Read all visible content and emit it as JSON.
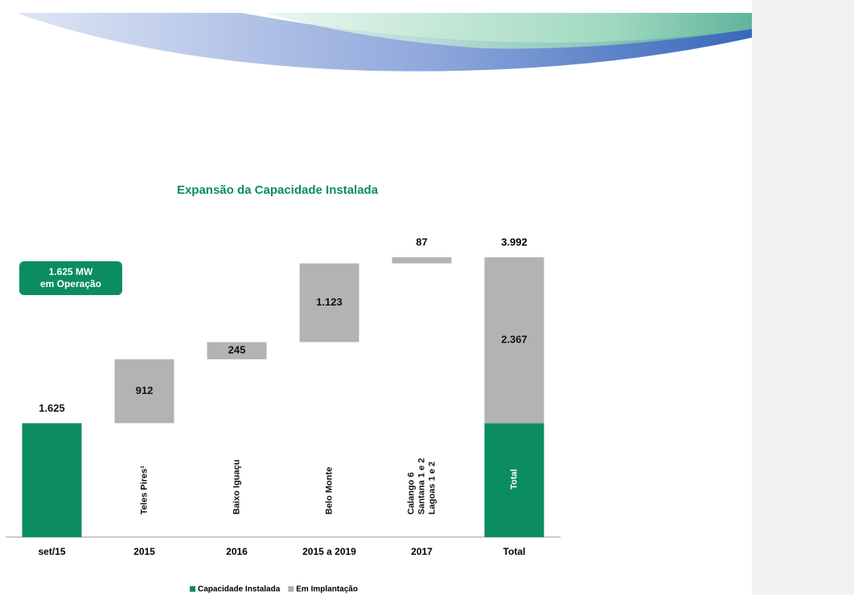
{
  "chart_data": {
    "type": "waterfall",
    "title": "Expansão da Capacidade Instalada",
    "badge": [
      "1.625 MW",
      "em Operação"
    ],
    "categories": [
      "set/15",
      "2015",
      "2016",
      "2015 a 2019",
      "2017",
      "Total"
    ],
    "bar_labels": [
      null,
      "Teles Pires¹",
      "Baixo Iguaçu",
      "Belo Monte",
      [
        "Calango 6",
        "Santana 1 e 2",
        "Lagoas 1 e 2"
      ],
      "Total"
    ],
    "series": [
      {
        "name": "Capacidade Instalada",
        "color": "#0b8c62",
        "values": [
          1625,
          null,
          null,
          null,
          null,
          1625
        ],
        "value_labels": [
          "1.625",
          null,
          null,
          null,
          null,
          null
        ]
      },
      {
        "name": "Em Implantação",
        "color": "#b3b3b3",
        "values": [
          null,
          912,
          245,
          1123,
          87,
          2367
        ],
        "value_labels": [
          null,
          "912",
          "245",
          "1.123",
          "87",
          "2.367"
        ]
      }
    ],
    "total": {
      "value": 3992,
      "label": "3.992"
    },
    "legend": "bottom"
  }
}
